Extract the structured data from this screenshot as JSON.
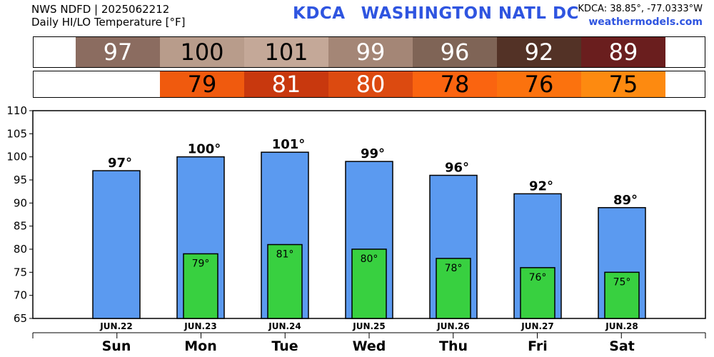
{
  "header": {
    "line1": "NWS NDFD | 2025062212",
    "line2": "Daily HI/LO Temperature [°F]",
    "station_code": "KDCA",
    "station_name": "WASHINGTON NATL DC",
    "coords": "KDCA: 38.85°, -77.0333°W",
    "site": "weathermodels.com"
  },
  "hi_strip": [
    {
      "text": "97",
      "bg": "#8b6c60",
      "fg": "#ffffff"
    },
    {
      "text": "100",
      "bg": "#b89c8b",
      "fg": "#000000"
    },
    {
      "text": "101",
      "bg": "#c4a898",
      "fg": "#000000"
    },
    {
      "text": "99",
      "bg": "#a48676",
      "fg": "#ffffff"
    },
    {
      "text": "96",
      "bg": "#7f6456",
      "fg": "#ffffff"
    },
    {
      "text": "92",
      "bg": "#533226",
      "fg": "#ffffff"
    },
    {
      "text": "89",
      "bg": "#6a1e1e",
      "fg": "#ffffff"
    }
  ],
  "lo_strip": [
    {
      "text": "79",
      "bg": "#f05a0e",
      "fg": "#000000"
    },
    {
      "text": "81",
      "bg": "#c8380e",
      "fg": "#ffffff"
    },
    {
      "text": "80",
      "bg": "#dc4a10",
      "fg": "#ffffff"
    },
    {
      "text": "78",
      "bg": "#fa6410",
      "fg": "#000000"
    },
    {
      "text": "76",
      "bg": "#fb720e",
      "fg": "#000000"
    },
    {
      "text": "75",
      "bg": "#fd8a10",
      "fg": "#000000"
    }
  ],
  "chart_data": {
    "type": "bar",
    "title": "Daily HI/LO Temperature [°F]",
    "days": [
      "Sun",
      "Mon",
      "Tue",
      "Wed",
      "Thu",
      "Fri",
      "Sat"
    ],
    "dates": [
      "JUN.22",
      "JUN.23",
      "JUN.24",
      "JUN.25",
      "JUN.26",
      "JUN.27",
      "JUN.28"
    ],
    "series": [
      {
        "name": "HI",
        "values": [
          97,
          100,
          101,
          99,
          96,
          92,
          89
        ],
        "color": "#5b9af0",
        "labels": [
          "97°",
          "100°",
          "101°",
          "99°",
          "96°",
          "92°",
          "89°"
        ]
      },
      {
        "name": "LO",
        "values": [
          null,
          79,
          81,
          80,
          78,
          76,
          75
        ],
        "color": "#38d040",
        "labels": [
          "",
          "79°",
          "81°",
          "80°",
          "78°",
          "76°",
          "75°"
        ]
      }
    ],
    "ylim": [
      65,
      110
    ],
    "yticks": [
      "65",
      "70",
      "75",
      "80",
      "85",
      "90",
      "95",
      "100",
      "105",
      "110"
    ]
  }
}
